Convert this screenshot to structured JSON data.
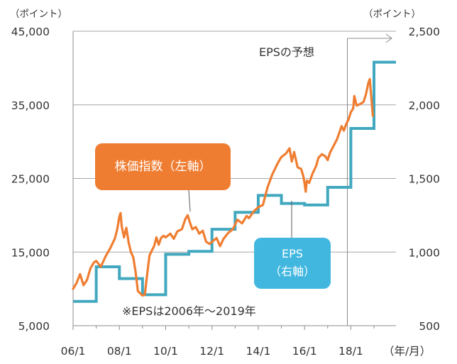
{
  "chart_data": {
    "type": "line",
    "left_axis_unit": "（ポイント）",
    "right_axis_unit": "（ポイント）",
    "x_unit": "（年/月）",
    "x_ticks": [
      "06/1",
      "08/1",
      "10/1",
      "12/1",
      "14/1",
      "16/1",
      "18/1"
    ],
    "y_left": {
      "ticks": [
        "45,000",
        "35,000",
        "25,000",
        "15,000",
        "5,000"
      ],
      "min": 5000,
      "max": 45000
    },
    "y_right": {
      "ticks": [
        "2,500",
        "2,000",
        "1,500",
        "1,000",
        "500"
      ],
      "min": 500,
      "max": 2500
    },
    "grid": true,
    "forecast_label": "EPSの予想",
    "note": "※EPSは2006年～2019年",
    "series": [
      {
        "name": "株価指数（左軸）",
        "axis": "left",
        "color": "#ef7d31",
        "points": [
          [
            2006.0,
            10000
          ],
          [
            2006.15,
            10800
          ],
          [
            2006.3,
            12000
          ],
          [
            2006.45,
            10500
          ],
          [
            2006.6,
            11200
          ],
          [
            2006.75,
            12800
          ],
          [
            2006.9,
            13600
          ],
          [
            2007.0,
            13800
          ],
          [
            2007.2,
            13000
          ],
          [
            2007.4,
            14400
          ],
          [
            2007.6,
            15500
          ],
          [
            2007.8,
            16800
          ],
          [
            2007.9,
            18000
          ],
          [
            2008.0,
            19800
          ],
          [
            2008.05,
            20300
          ],
          [
            2008.1,
            18500
          ],
          [
            2008.2,
            17000
          ],
          [
            2008.3,
            18300
          ],
          [
            2008.4,
            16300
          ],
          [
            2008.5,
            15000
          ],
          [
            2008.6,
            14300
          ],
          [
            2008.7,
            12300
          ],
          [
            2008.75,
            11000
          ],
          [
            2008.8,
            9700
          ],
          [
            2008.9,
            9400
          ],
          [
            2009.0,
            9100
          ],
          [
            2009.1,
            9200
          ],
          [
            2009.2,
            12000
          ],
          [
            2009.3,
            14500
          ],
          [
            2009.4,
            15200
          ],
          [
            2009.5,
            15800
          ],
          [
            2009.6,
            17000
          ],
          [
            2009.7,
            16000
          ],
          [
            2009.8,
            16900
          ],
          [
            2009.9,
            17200
          ],
          [
            2010.0,
            17000
          ],
          [
            2010.2,
            17500
          ],
          [
            2010.35,
            16800
          ],
          [
            2010.5,
            17800
          ],
          [
            2010.7,
            18100
          ],
          [
            2010.85,
            19500
          ],
          [
            2010.95,
            20000
          ],
          [
            2011.05,
            19000
          ],
          [
            2011.15,
            18100
          ],
          [
            2011.3,
            18400
          ],
          [
            2011.45,
            17500
          ],
          [
            2011.6,
            17900
          ],
          [
            2011.75,
            16400
          ],
          [
            2011.9,
            16100
          ],
          [
            2012.0,
            16400
          ],
          [
            2012.2,
            16900
          ],
          [
            2012.35,
            15800
          ],
          [
            2012.5,
            16800
          ],
          [
            2012.7,
            17600
          ],
          [
            2012.9,
            18100
          ],
          [
            2013.1,
            19400
          ],
          [
            2013.3,
            18900
          ],
          [
            2013.5,
            19900
          ],
          [
            2013.6,
            19600
          ],
          [
            2013.8,
            20500
          ],
          [
            2014.0,
            21100
          ],
          [
            2014.2,
            21400
          ],
          [
            2014.4,
            23800
          ],
          [
            2014.6,
            25500
          ],
          [
            2014.8,
            26800
          ],
          [
            2014.9,
            27400
          ],
          [
            2015.0,
            27900
          ],
          [
            2015.2,
            28400
          ],
          [
            2015.35,
            29100
          ],
          [
            2015.45,
            27300
          ],
          [
            2015.55,
            28600
          ],
          [
            2015.7,
            26500
          ],
          [
            2015.85,
            26300
          ],
          [
            2015.95,
            25300
          ],
          [
            2016.0,
            24300
          ],
          [
            2016.05,
            23200
          ],
          [
            2016.1,
            24700
          ],
          [
            2016.2,
            24400
          ],
          [
            2016.35,
            25700
          ],
          [
            2016.5,
            26700
          ],
          [
            2016.6,
            27800
          ],
          [
            2016.75,
            28300
          ],
          [
            2016.9,
            28000
          ],
          [
            2017.0,
            27500
          ],
          [
            2017.1,
            28500
          ],
          [
            2017.2,
            29100
          ],
          [
            2017.4,
            30300
          ],
          [
            2017.6,
            32100
          ],
          [
            2017.7,
            31500
          ],
          [
            2017.8,
            32400
          ],
          [
            2017.9,
            33000
          ],
          [
            2018.0,
            34000
          ],
          [
            2018.1,
            34500
          ],
          [
            2018.15,
            36200
          ],
          [
            2018.25,
            34900
          ],
          [
            2018.4,
            35100
          ],
          [
            2018.55,
            35400
          ],
          [
            2018.65,
            36400
          ],
          [
            2018.75,
            37900
          ],
          [
            2018.82,
            38500
          ],
          [
            2018.88,
            36200
          ],
          [
            2018.95,
            33500
          ]
        ]
      },
      {
        "name": "EPS（右軸）",
        "axis": "right",
        "color": "#41a8bf",
        "steps": [
          [
            2006.0,
            665
          ],
          [
            2007.0,
            900
          ],
          [
            2008.0,
            820
          ],
          [
            2009.0,
            710
          ],
          [
            2010.0,
            985
          ],
          [
            2011.0,
            1005
          ],
          [
            2012.0,
            1155
          ],
          [
            2013.0,
            1270
          ],
          [
            2014.0,
            1385
          ],
          [
            2015.0,
            1330
          ],
          [
            2016.0,
            1320
          ],
          [
            2017.0,
            1440
          ],
          [
            2018.0,
            1840
          ],
          [
            2019.0,
            2290
          ],
          [
            2019.95,
            2290
          ]
        ]
      }
    ]
  },
  "callouts": {
    "price_label": "株価指数（左軸）",
    "eps_label_top": "EPS",
    "eps_label_bottom": "（右軸）"
  }
}
